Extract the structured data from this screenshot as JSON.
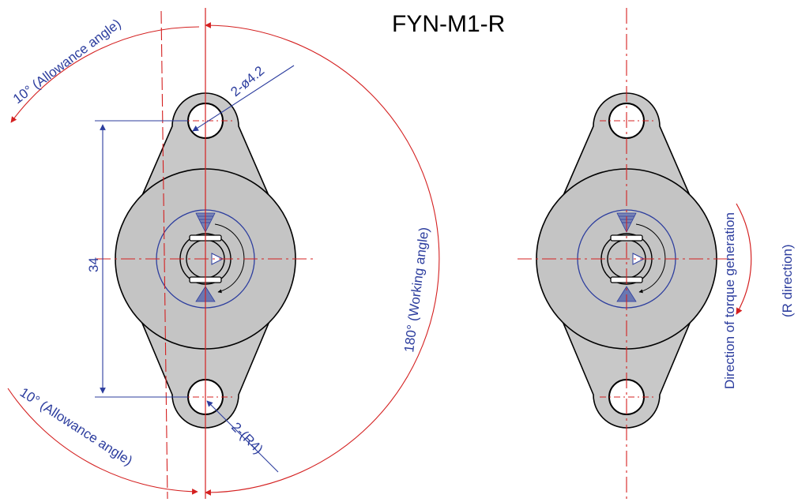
{
  "title": "FYN-M1-R",
  "left_view": {
    "allowance_top": "10° (Allowance angle)",
    "allowance_bottom": "10° (Allowance angle)",
    "working_angle": "180° (Working angle)",
    "hole_dim": "2-ø4.2",
    "pitch_dim": "34",
    "radius_dim": "2-(R4)"
  },
  "right_view": {
    "torque_line1": "Direction of torque generation",
    "torque_line2": "(R direction)"
  },
  "colors": {
    "dimension": "#2c3d9e",
    "centerline": "#d42020",
    "body_fill": "#c8c8c8",
    "outline": "#000000"
  }
}
